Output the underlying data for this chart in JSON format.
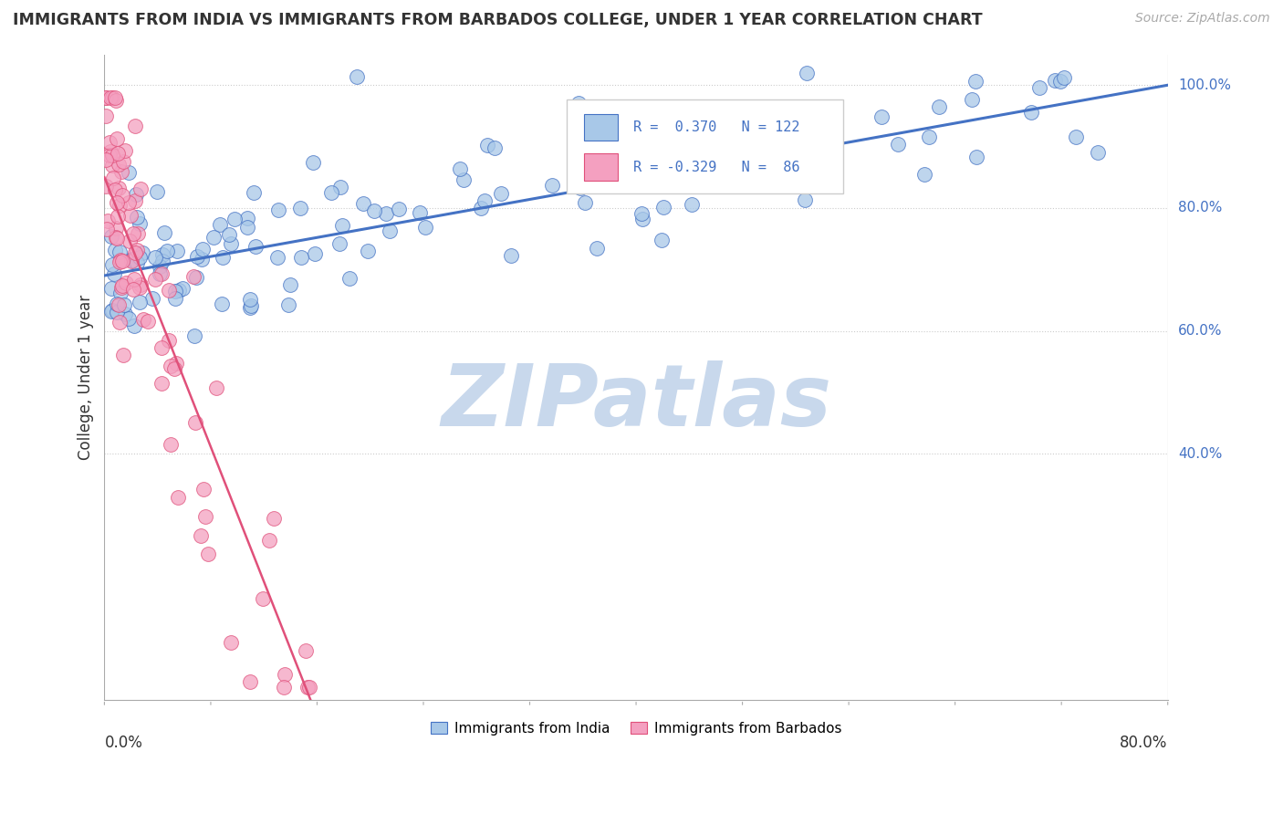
{
  "title": "IMMIGRANTS FROM INDIA VS IMMIGRANTS FROM BARBADOS COLLEGE, UNDER 1 YEAR CORRELATION CHART",
  "source": "Source: ZipAtlas.com",
  "ylabel": "College, Under 1 year",
  "legend_label1": "Immigrants from India",
  "legend_label2": "Immigrants from Barbados",
  "R_india": 0.37,
  "N_india": 122,
  "R_barbados": -0.329,
  "N_barbados": 86,
  "color_india": "#a8c8e8",
  "color_barbados": "#f4a0c0",
  "line_color_india": "#4472c4",
  "line_color_barbados": "#e0507a",
  "watermark_color": "#c8d8ec",
  "background": "#ffffff",
  "grid_color": "#cccccc",
  "xlim": [
    0.0,
    0.8
  ],
  "ylim": [
    0.0,
    1.05
  ],
  "india_line_x0": 0.0,
  "india_line_y0": 0.69,
  "india_line_x1": 0.8,
  "india_line_y1": 1.0,
  "barbados_line_x0": 0.0,
  "barbados_line_y0": 0.85,
  "barbados_line_x1": 0.155,
  "barbados_line_y1": 0.0
}
